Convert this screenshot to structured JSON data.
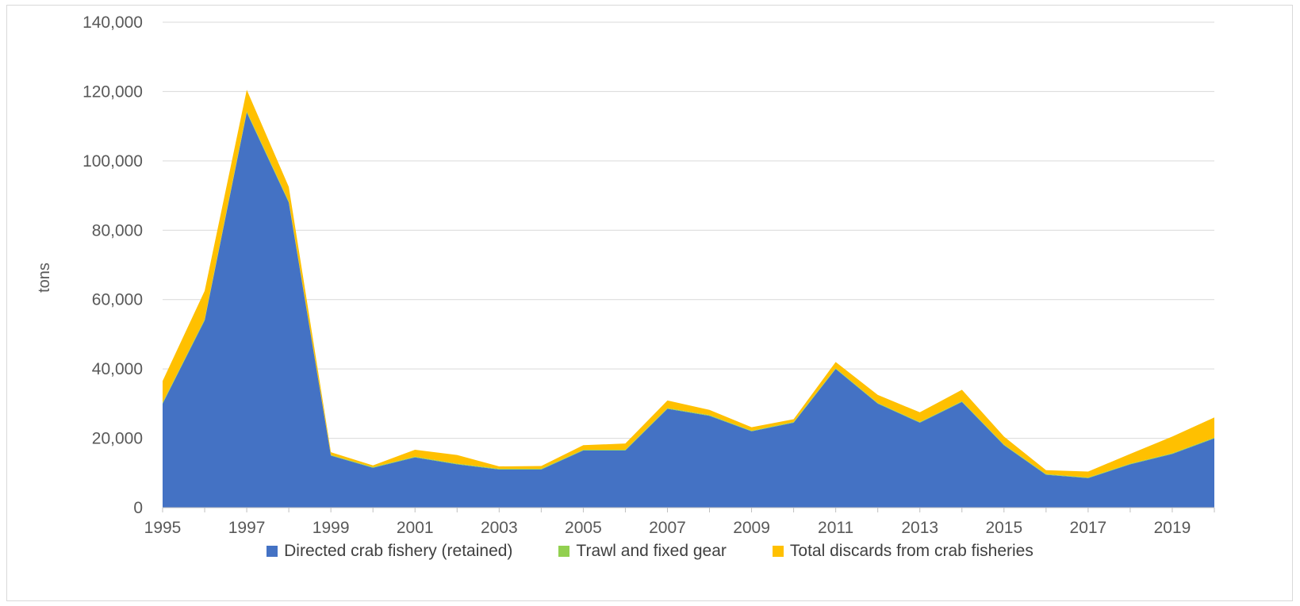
{
  "chart_data": {
    "type": "area",
    "stacked": true,
    "ylabel": "tons",
    "ylim": [
      0,
      140000
    ],
    "yticks": [
      0,
      20000,
      40000,
      60000,
      80000,
      100000,
      120000,
      140000
    ],
    "ytick_labels": [
      "0",
      "20,000",
      "40,000",
      "60,000",
      "80,000",
      "100,000",
      "120,000",
      "140,000"
    ],
    "x": [
      1995,
      1996,
      1997,
      1998,
      1999,
      2000,
      2001,
      2002,
      2003,
      2004,
      2005,
      2006,
      2007,
      2008,
      2009,
      2010,
      2011,
      2012,
      2013,
      2014,
      2015,
      2016,
      2017,
      2018,
      2019,
      2020
    ],
    "xtick_labels": [
      "1995",
      "1997",
      "1999",
      "2001",
      "2003",
      "2005",
      "2007",
      "2009",
      "2011",
      "2013",
      "2015",
      "2017",
      "2019"
    ],
    "grid": true,
    "legend_position": "bottom",
    "series": [
      {
        "name": "Directed crab fishery (retained)",
        "color": "#4472c4",
        "values": [
          30000,
          54000,
          114000,
          88000,
          15000,
          11500,
          14500,
          12500,
          11000,
          11000,
          16500,
          16500,
          28500,
          26500,
          22000,
          24500,
          40000,
          30000,
          24500,
          30500,
          18000,
          9500,
          8500,
          12500,
          15500,
          20000
        ]
      },
      {
        "name": "Trawl and fixed gear",
        "color": "#92d050",
        "values": [
          300,
          300,
          300,
          300,
          200,
          200,
          200,
          200,
          200,
          200,
          200,
          200,
          200,
          200,
          200,
          200,
          200,
          200,
          200,
          200,
          200,
          200,
          200,
          200,
          200,
          200
        ]
      },
      {
        "name": "Total discards from crab fisheries",
        "color": "#ffc000",
        "values": [
          6200,
          8200,
          6200,
          4200,
          800,
          500,
          2000,
          2500,
          700,
          800,
          1300,
          1800,
          2200,
          1500,
          1000,
          800,
          1800,
          2300,
          2800,
          3300,
          2300,
          1100,
          1700,
          2800,
          4800,
          5800
        ]
      }
    ]
  }
}
